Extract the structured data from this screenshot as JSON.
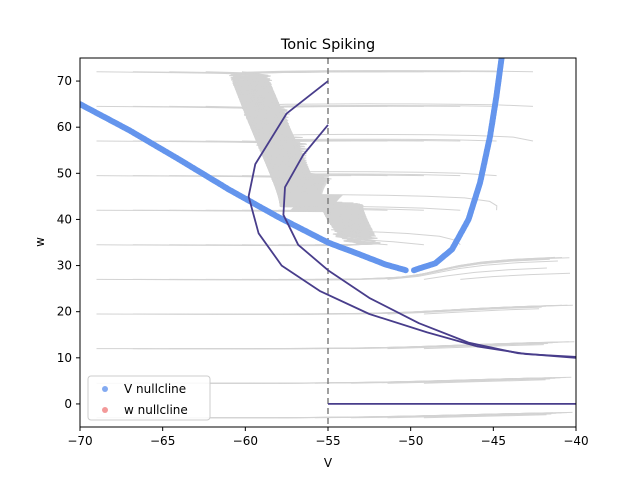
{
  "chart_data": {
    "type": "line",
    "title": "Tonic Spiking",
    "xlabel": "V",
    "ylabel": "w",
    "xlim": [
      -70,
      -40
    ],
    "ylim": [
      -5,
      75
    ],
    "xticks": [
      -70,
      -65,
      -60,
      -55,
      -50,
      -45,
      -40
    ],
    "yticks": [
      0,
      10,
      20,
      30,
      40,
      50,
      60,
      70
    ],
    "grid": false,
    "legend_position": "bottom-left",
    "legend": [
      {
        "label": "V nullcline",
        "color": "#6495ed"
      },
      {
        "label": "w nullcline",
        "color": "#f08080"
      }
    ],
    "colors": {
      "v_nullcline": "#6495ed",
      "w_nullcline": "#f08080",
      "trajectory": "#483d8b",
      "streamlines": "#d3d3d3",
      "reset_line": "#808080"
    },
    "reset_line_x": -55,
    "series": [
      {
        "name": "V nullcline",
        "style": "dots",
        "segments": [
          [
            [
              -70,
              65
            ],
            [
              -67,
              59.3
            ],
            [
              -64,
              53
            ],
            [
              -61,
              46.5
            ],
            [
              -58,
              40.5
            ],
            [
              -55,
              35
            ],
            [
              -53,
              32.3
            ],
            [
              -51.5,
              30.2
            ],
            [
              -50.3,
              29
            ]
          ],
          [
            [
              -49.8,
              29
            ],
            [
              -48.5,
              30.5
            ],
            [
              -47.5,
              33.5
            ],
            [
              -46.5,
              40
            ],
            [
              -45.8,
              48
            ],
            [
              -45.2,
              58
            ],
            [
              -44.8,
              67
            ],
            [
              -44.5,
              75
            ]
          ]
        ]
      },
      {
        "name": "trajectory",
        "style": "line",
        "segments": [
          [
            [
              -55,
              70
            ],
            [
              -57.5,
              63
            ],
            [
              -59.4,
              52
            ],
            [
              -59.8,
              45
            ],
            [
              -59.2,
              37
            ],
            [
              -57.8,
              30
            ],
            [
              -55.5,
              24.5
            ],
            [
              -52.5,
              19.5
            ],
            [
              -49,
              15.5
            ],
            [
              -46,
              12.5
            ],
            [
              -43,
              10.8
            ],
            [
              -40,
              10.2
            ]
          ],
          [
            [
              -55,
              60.5
            ],
            [
              -56.5,
              54
            ],
            [
              -57.6,
              47
            ],
            [
              -57.7,
              41
            ],
            [
              -56.8,
              34.5
            ],
            [
              -55,
              29
            ],
            [
              -52.5,
              23
            ],
            [
              -49.5,
              17.5
            ],
            [
              -46.5,
              13.3
            ],
            [
              -43.5,
              11
            ],
            [
              -40,
              10
            ]
          ],
          [
            [
              -55,
              0
            ],
            [
              -40,
              0
            ]
          ]
        ]
      }
    ]
  }
}
